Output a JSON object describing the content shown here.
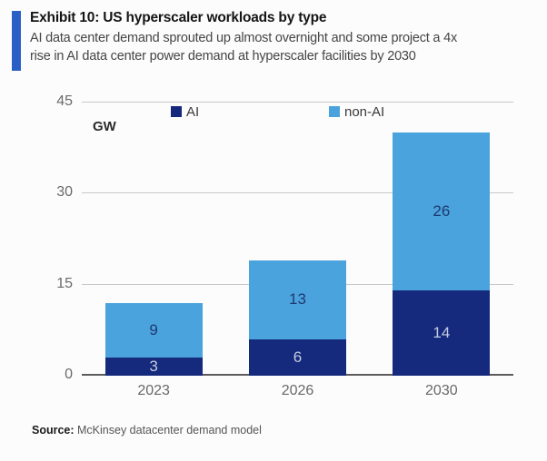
{
  "header": {
    "exhibit_title": "Exhibit 10: US hyperscaler workloads by type",
    "subtitle": "AI data center demand sprouted up almost overnight and some project a 4x rise in AI data center power demand at hyperscaler facilities by 2030"
  },
  "chart_data": {
    "type": "bar",
    "stacked": true,
    "title": "Exhibit 10: US hyperscaler workloads by type",
    "unit_label": "GW",
    "categories": [
      "2023",
      "2026",
      "2030"
    ],
    "series": [
      {
        "name": "AI",
        "values": [
          3,
          6,
          14
        ],
        "color": "#152a7d",
        "label_color": "#c4cbe0"
      },
      {
        "name": "non-AI",
        "values": [
          9,
          13,
          26
        ],
        "color": "#4aa3dc",
        "label_color": "#1e3a70"
      }
    ],
    "totals": [
      12,
      19,
      40
    ],
    "yticks": [
      0,
      15,
      30,
      45
    ],
    "ylim": [
      0,
      45
    ],
    "grid": "horizontal",
    "legend_position": "top"
  },
  "source": {
    "label": "Source:",
    "text": " McKinsey datacenter demand model"
  },
  "colors": {
    "accent_bar": "#2a60c6",
    "ai_bar": "#152a7d",
    "non_ai_bar": "#4aa3dc",
    "gridline": "#c9c9c9",
    "axis_line": "#5c5c5c"
  }
}
